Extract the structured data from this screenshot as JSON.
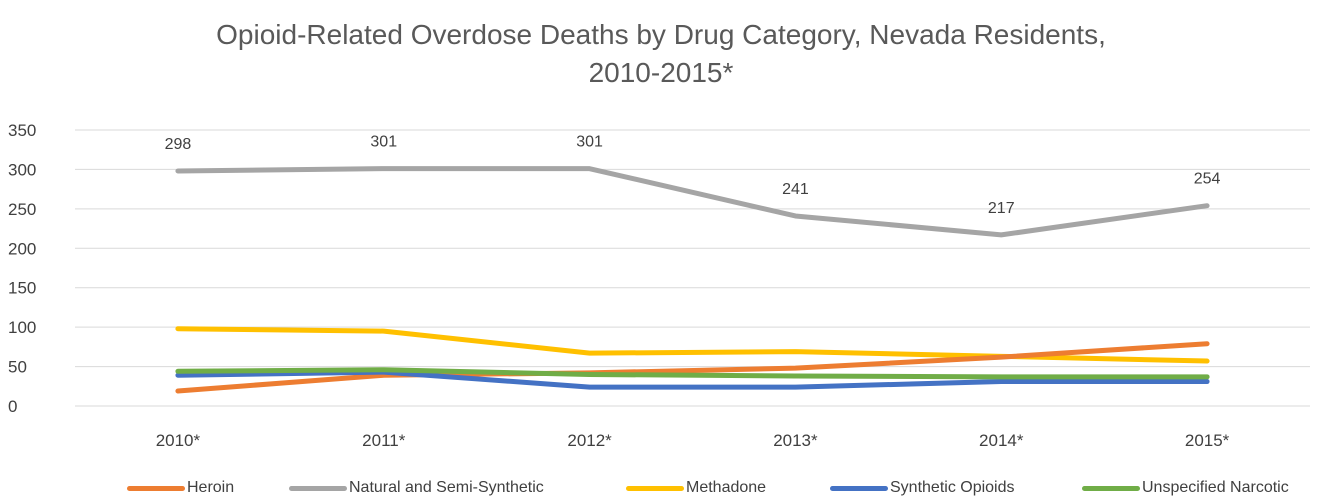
{
  "title_lines": [
    "Opioid-Related Overdose Deaths by Drug Category, Nevada Residents,",
    "2010-2015*"
  ],
  "chart_data": {
    "type": "line",
    "title": "Opioid-Related Overdose Deaths by Drug Category, Nevada Residents, 2010-2015*",
    "categories": [
      "2010*",
      "2011*",
      "2012*",
      "2013*",
      "2014*",
      "2015*"
    ],
    "ylim": [
      0,
      350
    ],
    "yticks": [
      0,
      50,
      100,
      150,
      200,
      250,
      300,
      350
    ],
    "grid": true,
    "legend_position": "bottom",
    "series": [
      {
        "name": "Heroin",
        "color": "#ED7D31",
        "values": [
          19,
          39,
          42,
          48,
          62,
          79
        ]
      },
      {
        "name": "Natural and Semi-Synthetic",
        "color": "#A5A5A5",
        "values": [
          298,
          301,
          301,
          241,
          217,
          254
        ],
        "data_labels": true
      },
      {
        "name": "Methadone",
        "color": "#FFC000",
        "values": [
          98,
          95,
          67,
          69,
          63,
          57
        ]
      },
      {
        "name": "Synthetic Opioids",
        "color": "#4472C4",
        "values": [
          39,
          43,
          24,
          24,
          31,
          31
        ]
      },
      {
        "name": "Unspecified Narcotic",
        "color": "#70AD47",
        "values": [
          44,
          46,
          40,
          38,
          37,
          37
        ]
      }
    ]
  }
}
